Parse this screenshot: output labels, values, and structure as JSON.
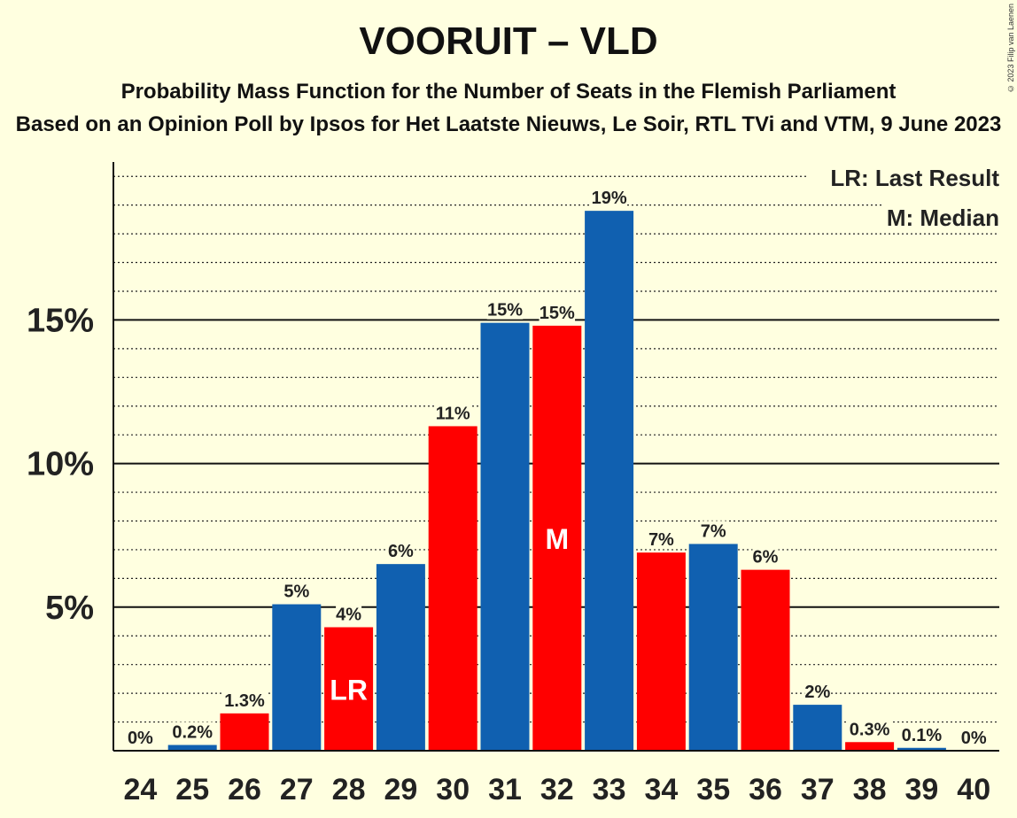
{
  "chart_data": {
    "type": "bar",
    "title": "VOORUIT – VLD",
    "subtitle": "Probability Mass Function for the Number of Seats in the Flemish Parliament",
    "subsubtitle": "Based on an Opinion Poll by Ipsos for Het Laatste Nieuws, Le Soir, RTL TVi and VTM, 9 June 2023",
    "copyright": "© 2023 Filip van Laenen",
    "categories": [
      "24",
      "25",
      "26",
      "27",
      "28",
      "29",
      "30",
      "31",
      "32",
      "33",
      "34",
      "35",
      "36",
      "37",
      "38",
      "39",
      "40"
    ],
    "values": [
      0,
      0.2,
      1.3,
      5.1,
      4.3,
      6.5,
      11.3,
      14.9,
      14.8,
      18.8,
      6.9,
      7.2,
      6.3,
      1.6,
      0.3,
      0.1,
      0
    ],
    "value_labels": [
      "0%",
      "0.2%",
      "1.3%",
      "5%",
      "4%",
      "6%",
      "11%",
      "15%",
      "15%",
      "19%",
      "7%",
      "7%",
      "6%",
      "2%",
      "0.3%",
      "0.1%",
      "0%"
    ],
    "colors": [
      "#1060B0",
      "#1060B0",
      "#FF0000",
      "#1060B0",
      "#FF0000",
      "#1060B0",
      "#FF0000",
      "#1060B0",
      "#FF0000",
      "#1060B0",
      "#FF0000",
      "#1060B0",
      "#FF0000",
      "#1060B0",
      "#FF0000",
      "#1060B0",
      "#FF0000"
    ],
    "ylim": [
      0,
      20.5
    ],
    "yticks": [
      5,
      10,
      15
    ],
    "ytick_labels": [
      "5%",
      "10%",
      "15%"
    ],
    "minor_grid_step": 1,
    "last_result_category": "28",
    "last_result_marker": "LR",
    "median_category": "32",
    "median_marker": "M",
    "legend": [
      "LR: Last Result",
      "M: Median"
    ],
    "legend_position": "top-right"
  }
}
